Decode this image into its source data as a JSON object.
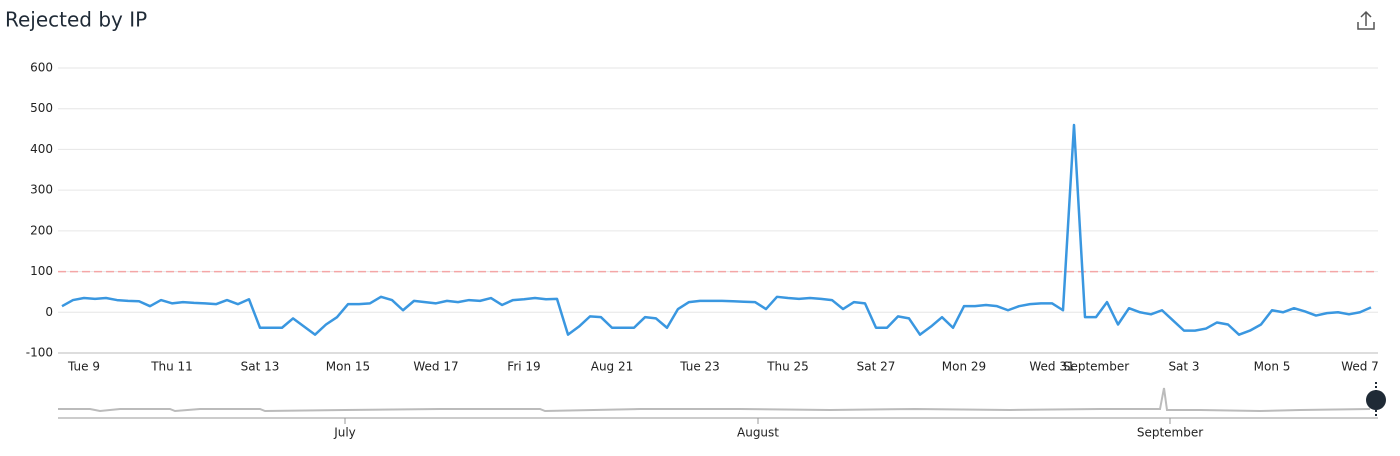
{
  "chart_data": {
    "type": "line",
    "title": "Rejected by IP",
    "categories": [
      null,
      null,
      "Tue 9",
      null,
      null,
      null,
      null,
      null,
      null,
      null,
      "Thu 11",
      null,
      null,
      null,
      null,
      null,
      null,
      null,
      "Sat 13",
      null,
      null,
      null,
      null,
      null,
      null,
      null,
      "Mon 15",
      null,
      null,
      null,
      null,
      null,
      null,
      null,
      "Wed 17",
      null,
      null,
      null,
      null,
      null,
      null,
      null,
      "Fri 19",
      null,
      null,
      null,
      null,
      null,
      null,
      null,
      "Aug 21",
      null,
      null,
      null,
      null,
      null,
      null,
      null,
      "Tue 23",
      null,
      null,
      null,
      null,
      null,
      null,
      null,
      "Thu 25",
      null,
      null,
      null,
      null,
      null,
      null,
      null,
      "Sat 27",
      null,
      null,
      null,
      null,
      null,
      null,
      null,
      "Mon 29",
      null,
      null,
      null,
      null,
      null,
      null,
      null,
      "Wed 31",
      null,
      null,
      null,
      "September",
      null,
      null,
      null,
      null,
      null,
      null,
      null,
      "Sat 3",
      null,
      null,
      null,
      null,
      null,
      null,
      null,
      "Mon 5",
      null,
      null,
      null,
      null,
      null,
      null,
      null,
      "Wed 7",
      null
    ],
    "series": [
      {
        "color": "#3a97e0",
        "values": [
          15,
          30,
          35,
          33,
          35,
          30,
          28,
          27,
          15,
          30,
          22,
          25,
          23,
          22,
          20,
          30,
          20,
          32,
          -38,
          -38,
          -38,
          -15,
          -35,
          -55,
          -30,
          -12,
          20,
          20,
          22,
          38,
          30,
          5,
          28,
          25,
          22,
          28,
          25,
          30,
          28,
          35,
          18,
          30,
          32,
          35,
          32,
          33,
          -55,
          -35,
          -10,
          -12,
          -38,
          -38,
          -38,
          -12,
          -15,
          -38,
          8,
          25,
          28,
          28,
          28,
          27,
          26,
          25,
          8,
          38,
          35,
          33,
          35,
          33,
          30,
          8,
          25,
          22,
          -38,
          -38,
          -10,
          -15,
          -55,
          -35,
          -12,
          -38,
          15,
          15,
          18,
          15,
          5,
          15,
          20,
          22,
          22,
          5,
          460,
          -12,
          -12,
          25,
          -30,
          10,
          0,
          -5,
          5,
          -20,
          -45,
          -45,
          -40,
          -25,
          -30,
          -55,
          -45,
          -30,
          5,
          0,
          10,
          2,
          -8,
          -2,
          0,
          -5,
          0,
          12
        ]
      }
    ],
    "threshold": 100,
    "threshold_color": "#f4a6a6",
    "ylim": [
      -100,
      600
    ],
    "yticks": [
      -100,
      0,
      100,
      200,
      300,
      400,
      500,
      600
    ],
    "grid": true,
    "navigator": {
      "labels": [
        "July",
        "August",
        "September"
      ]
    }
  }
}
